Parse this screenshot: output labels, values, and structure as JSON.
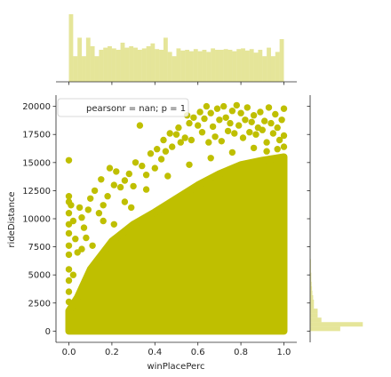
{
  "chart_data": {
    "type": "scatter",
    "colors": {
      "points": "#bfbf00",
      "hist": "#bfbf00",
      "axis": "#262626"
    },
    "xlabel": "winPlacePerc",
    "ylabel": "rideDistance",
    "xlim": [
      -0.06,
      1.06
    ],
    "ylim": [
      -1000,
      21000
    ],
    "grid": false,
    "legend": {
      "text": "pearsonr = nan; p = 1",
      "location": "upper-left"
    },
    "x_ticks": [
      {
        "value": 0.0,
        "label": "0.0"
      },
      {
        "value": 0.2,
        "label": "0.2"
      },
      {
        "value": 0.4,
        "label": "0.4"
      },
      {
        "value": 0.6,
        "label": "0.6"
      },
      {
        "value": 0.8,
        "label": "0.8"
      },
      {
        "value": 1.0,
        "label": "1.0"
      }
    ],
    "y_ticks": [
      {
        "value": 0,
        "label": "0"
      },
      {
        "value": 2500,
        "label": "2500"
      },
      {
        "value": 5000,
        "label": "5000"
      },
      {
        "value": 7500,
        "label": "7500"
      },
      {
        "value": 10000,
        "label": "10000"
      },
      {
        "value": 12500,
        "label": "12500"
      },
      {
        "value": 15000,
        "label": "15000"
      },
      {
        "value": 17500,
        "label": "17500"
      },
      {
        "value": 20000,
        "label": "20000"
      }
    ],
    "dense_region": [
      [
        0.0,
        0
      ],
      [
        0.0,
        1800
      ],
      [
        0.04,
        3000
      ],
      [
        0.1,
        5500
      ],
      [
        0.2,
        8000
      ],
      [
        0.3,
        9500
      ],
      [
        0.4,
        10600
      ],
      [
        0.5,
        11800
      ],
      [
        0.6,
        13000
      ],
      [
        0.7,
        14000
      ],
      [
        0.8,
        14800
      ],
      [
        0.9,
        15200
      ],
      [
        1.0,
        15500
      ],
      [
        1.0,
        0
      ]
    ],
    "sample_points": [
      [
        0.0,
        15200
      ],
      [
        0.0,
        12000
      ],
      [
        0.0,
        11500
      ],
      [
        0.0,
        10500
      ],
      [
        0.0,
        9500
      ],
      [
        0.0,
        8700
      ],
      [
        0.0,
        7600
      ],
      [
        0.0,
        6800
      ],
      [
        0.0,
        5500
      ],
      [
        0.0,
        4500
      ],
      [
        0.0,
        3500
      ],
      [
        0.0,
        2600
      ],
      [
        0.01,
        11200
      ],
      [
        0.02,
        9800
      ],
      [
        0.03,
        8200
      ],
      [
        0.04,
        7000
      ],
      [
        0.05,
        11000
      ],
      [
        0.06,
        10100
      ],
      [
        0.07,
        9200
      ],
      [
        0.08,
        8300
      ],
      [
        0.09,
        10800
      ],
      [
        0.1,
        11800
      ],
      [
        0.12,
        12500
      ],
      [
        0.14,
        10500
      ],
      [
        0.15,
        13500
      ],
      [
        0.16,
        11200
      ],
      [
        0.18,
        12000
      ],
      [
        0.19,
        14500
      ],
      [
        0.21,
        13000
      ],
      [
        0.22,
        14200
      ],
      [
        0.24,
        12800
      ],
      [
        0.26,
        13400
      ],
      [
        0.28,
        14000
      ],
      [
        0.3,
        12900
      ],
      [
        0.31,
        15000
      ],
      [
        0.33,
        18300
      ],
      [
        0.34,
        14700
      ],
      [
        0.36,
        13900
      ],
      [
        0.38,
        15800
      ],
      [
        0.4,
        14500
      ],
      [
        0.41,
        16200
      ],
      [
        0.43,
        15300
      ],
      [
        0.44,
        17000
      ],
      [
        0.45,
        16000
      ],
      [
        0.47,
        17600
      ],
      [
        0.48,
        16400
      ],
      [
        0.5,
        17500
      ],
      [
        0.51,
        18100
      ],
      [
        0.52,
        16800
      ],
      [
        0.54,
        17200
      ],
      [
        0.55,
        19200
      ],
      [
        0.56,
        18500
      ],
      [
        0.57,
        17000
      ],
      [
        0.58,
        19000
      ],
      [
        0.6,
        18300
      ],
      [
        0.61,
        19500
      ],
      [
        0.62,
        17700
      ],
      [
        0.63,
        18900
      ],
      [
        0.64,
        20000
      ],
      [
        0.65,
        16800
      ],
      [
        0.66,
        19400
      ],
      [
        0.67,
        18200
      ],
      [
        0.68,
        17300
      ],
      [
        0.69,
        19800
      ],
      [
        0.7,
        18800
      ],
      [
        0.71,
        16900
      ],
      [
        0.72,
        20000
      ],
      [
        0.73,
        19000
      ],
      [
        0.74,
        17800
      ],
      [
        0.75,
        18500
      ],
      [
        0.76,
        19600
      ],
      [
        0.77,
        17600
      ],
      [
        0.78,
        20100
      ],
      [
        0.79,
        18300
      ],
      [
        0.8,
        19400
      ],
      [
        0.81,
        17200
      ],
      [
        0.82,
        18800
      ],
      [
        0.83,
        19900
      ],
      [
        0.84,
        17700
      ],
      [
        0.85,
        18600
      ],
      [
        0.86,
        19200
      ],
      [
        0.87,
        17500
      ],
      [
        0.88,
        18100
      ],
      [
        0.89,
        19500
      ],
      [
        0.9,
        17900
      ],
      [
        0.91,
        18700
      ],
      [
        0.92,
        16800
      ],
      [
        0.93,
        19900
      ],
      [
        0.94,
        18500
      ],
      [
        0.95,
        17600
      ],
      [
        0.96,
        19300
      ],
      [
        0.97,
        18100
      ],
      [
        0.98,
        17000
      ],
      [
        0.99,
        18800
      ],
      [
        1.0,
        19800
      ],
      [
        1.0,
        17400
      ],
      [
        1.0,
        16400
      ],
      [
        0.97,
        16200
      ],
      [
        0.92,
        16000
      ],
      [
        0.86,
        16300
      ],
      [
        0.76,
        15900
      ],
      [
        0.66,
        15400
      ],
      [
        0.56,
        14800
      ],
      [
        0.46,
        13800
      ],
      [
        0.36,
        12600
      ],
      [
        0.26,
        11500
      ],
      [
        0.16,
        9800
      ],
      [
        0.06,
        7300
      ],
      [
        0.02,
        5000
      ],
      [
        0.11,
        7600
      ],
      [
        0.21,
        9500
      ],
      [
        0.29,
        11000
      ]
    ],
    "x_hist": [
      0.95,
      0.36,
      0.62,
      0.36,
      0.62,
      0.5,
      0.36,
      0.45,
      0.48,
      0.5,
      0.47,
      0.45,
      0.55,
      0.48,
      0.5,
      0.48,
      0.45,
      0.47,
      0.5,
      0.54,
      0.46,
      0.45,
      0.62,
      0.42,
      0.36,
      0.47,
      0.44,
      0.45,
      0.43,
      0.46,
      0.43,
      0.45,
      0.42,
      0.47,
      0.45,
      0.45,
      0.46,
      0.45,
      0.43,
      0.46,
      0.47,
      0.44,
      0.46,
      0.41,
      0.45,
      0.36,
      0.48,
      0.36,
      0.42,
      0.6
    ],
    "y_hist": [
      0.08,
      0.14,
      0.03,
      0.02,
      0.02,
      0.01,
      0.01,
      0.008,
      0.006,
      0.005,
      0.004,
      0.003,
      0.003,
      0.002,
      0.002,
      0.002,
      0.001,
      0.001,
      0.001,
      0.001,
      0.001,
      0.001,
      0.001,
      0.001,
      0.001,
      0.001,
      0.001,
      0.001,
      0.001,
      0.001,
      0.001,
      0.001,
      0.001,
      0.001,
      0.001,
      0.001,
      0.001,
      0.001,
      0.001,
      0.001,
      0.001,
      0.001,
      0.001,
      0.001,
      0.001,
      0.001,
      0.001,
      0.001,
      0.001,
      0.001
    ],
    "y_hist_peak": 1.0
  }
}
